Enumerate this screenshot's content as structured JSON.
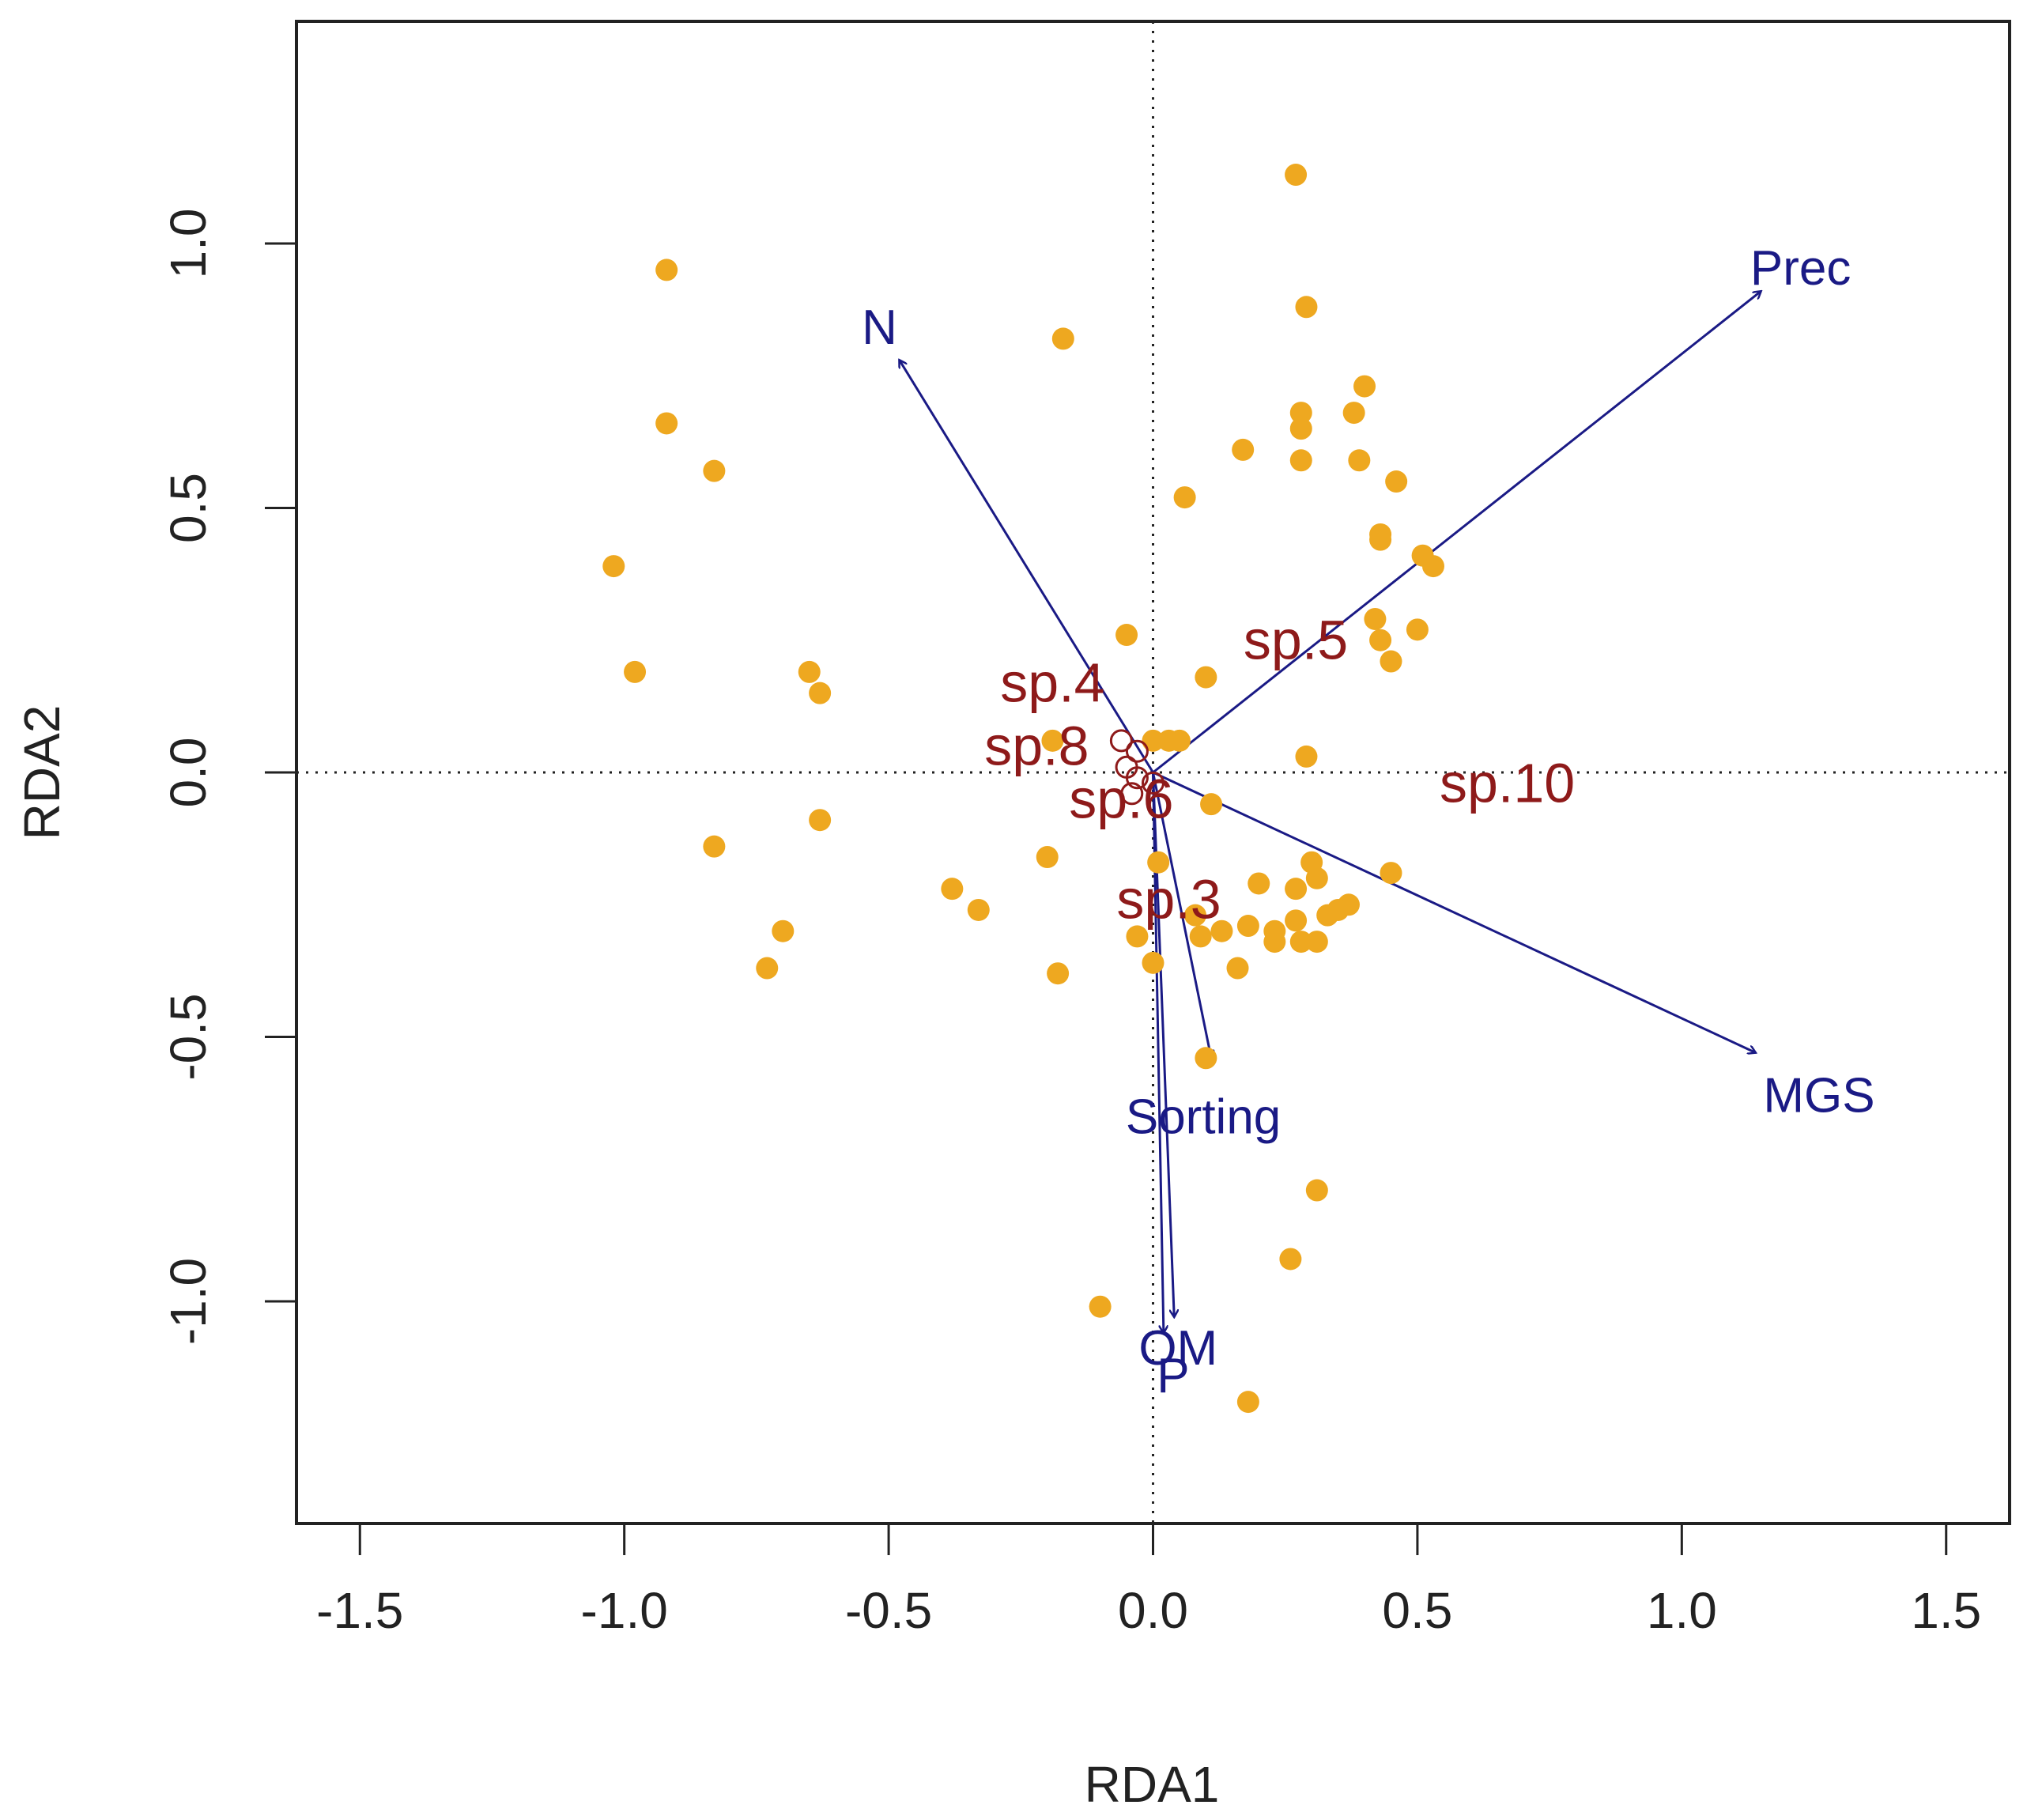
{
  "colors": {
    "site": "#EEA820",
    "env": "#1A1A85",
    "species": "#8E1A1A",
    "axis": "#222222"
  },
  "chart_data": {
    "type": "scatter",
    "title": "",
    "xlabel": "RDA1",
    "ylabel": "RDA2",
    "xlim": [
      -1.62,
      1.62
    ],
    "ylim": [
      -1.42,
      1.42
    ],
    "xticks": [
      -1.5,
      -1.0,
      -0.5,
      0.0,
      0.5,
      1.0,
      1.5
    ],
    "yticks": [
      -1.0,
      -0.5,
      0.0,
      0.5,
      1.0
    ],
    "xtick_labels": [
      "-1.5",
      "-1.0",
      "-0.5",
      "0.0",
      "0.5",
      "1.0",
      "1.5"
    ],
    "ytick_labels": [
      "-1.0",
      "-0.5",
      "0.0",
      "0.5",
      "1.0"
    ],
    "grid": false,
    "reference_lines": [
      {
        "axis": "x",
        "value": 0,
        "style": "dotted"
      },
      {
        "axis": "y",
        "value": 0,
        "style": "dotted"
      }
    ],
    "sites": [
      [
        -0.92,
        0.95
      ],
      [
        -0.92,
        0.66
      ],
      [
        -0.83,
        0.57
      ],
      [
        -1.02,
        0.39
      ],
      [
        -0.98,
        0.19
      ],
      [
        -0.65,
        0.19
      ],
      [
        -0.63,
        0.15
      ],
      [
        -0.63,
        -0.09
      ],
      [
        -0.83,
        -0.14
      ],
      [
        -0.7,
        -0.3
      ],
      [
        -0.73,
        -0.37
      ],
      [
        -0.38,
        -0.22
      ],
      [
        -0.33,
        -0.26
      ],
      [
        -0.2,
        -0.16
      ],
      [
        -0.18,
        -0.38
      ],
      [
        -0.17,
        0.82
      ],
      [
        -0.05,
        0.26
      ],
      [
        -0.19,
        0.06
      ],
      [
        -0.1,
        -1.01
      ],
      [
        0.27,
        1.13
      ],
      [
        0.29,
        0.88
      ],
      [
        0.4,
        0.73
      ],
      [
        0.38,
        0.68
      ],
      [
        0.28,
        0.68
      ],
      [
        0.28,
        0.65
      ],
      [
        0.17,
        0.61
      ],
      [
        0.28,
        0.59
      ],
      [
        0.39,
        0.59
      ],
      [
        0.46,
        0.55
      ],
      [
        0.06,
        0.52
      ],
      [
        0.43,
        0.45
      ],
      [
        0.43,
        0.44
      ],
      [
        0.51,
        0.41
      ],
      [
        0.53,
        0.39
      ],
      [
        0.42,
        0.29
      ],
      [
        0.5,
        0.27
      ],
      [
        0.43,
        0.25
      ],
      [
        0.45,
        0.21
      ],
      [
        0.1,
        0.18
      ],
      [
        0.29,
        0.03
      ],
      [
        0.0,
        0.06
      ],
      [
        0.03,
        0.06
      ],
      [
        0.05,
        0.06
      ],
      [
        0.11,
        -0.06
      ],
      [
        0.45,
        -0.19
      ],
      [
        0.3,
        -0.17
      ],
      [
        0.31,
        -0.2
      ],
      [
        0.27,
        -0.22
      ],
      [
        0.2,
        -0.21
      ],
      [
        0.37,
        -0.25
      ],
      [
        0.35,
        -0.26
      ],
      [
        0.33,
        -0.27
      ],
      [
        0.27,
        -0.28
      ],
      [
        0.23,
        -0.3
      ],
      [
        0.23,
        -0.32
      ],
      [
        0.28,
        -0.32
      ],
      [
        0.31,
        -0.32
      ],
      [
        0.18,
        -0.29
      ],
      [
        0.13,
        -0.3
      ],
      [
        0.08,
        -0.27
      ],
      [
        0.09,
        -0.31
      ],
      [
        -0.03,
        -0.31
      ],
      [
        0.0,
        -0.36
      ],
      [
        0.16,
        -0.37
      ],
      [
        0.01,
        -0.17
      ],
      [
        0.1,
        -0.54
      ],
      [
        0.31,
        -0.79
      ],
      [
        0.26,
        -0.92
      ],
      [
        0.18,
        -1.19
      ]
    ],
    "biplot_arrows": [
      {
        "label": "Prec",
        "x": 1.15,
        "y": 0.91
      },
      {
        "label": "N",
        "x": -0.48,
        "y": 0.78
      },
      {
        "label": "MGS",
        "x": 1.14,
        "y": -0.53
      },
      {
        "label": "Sorting",
        "x": 0.11,
        "y": -0.54
      },
      {
        "label": "OM",
        "x": 0.04,
        "y": -1.03
      },
      {
        "label": "P",
        "x": 0.02,
        "y": -1.06
      }
    ],
    "species": [
      {
        "label": "sp.4",
        "x": -0.19,
        "y": 0.17
      },
      {
        "label": "sp.8",
        "x": -0.22,
        "y": 0.05
      },
      {
        "label": "sp.5",
        "x": 0.27,
        "y": 0.25
      },
      {
        "label": "sp.10",
        "x": 0.67,
        "y": -0.02
      },
      {
        "label": "sp.6",
        "x": -0.06,
        "y": -0.05
      },
      {
        "label": "sp.3",
        "x": 0.03,
        "y": -0.24
      }
    ],
    "species_points": [
      [
        -0.06,
        0.06
      ],
      [
        -0.03,
        0.04
      ],
      [
        -0.05,
        0.01
      ],
      [
        -0.03,
        -0.01
      ],
      [
        -0.04,
        -0.04
      ],
      [
        0.0,
        -0.02
      ]
    ]
  }
}
